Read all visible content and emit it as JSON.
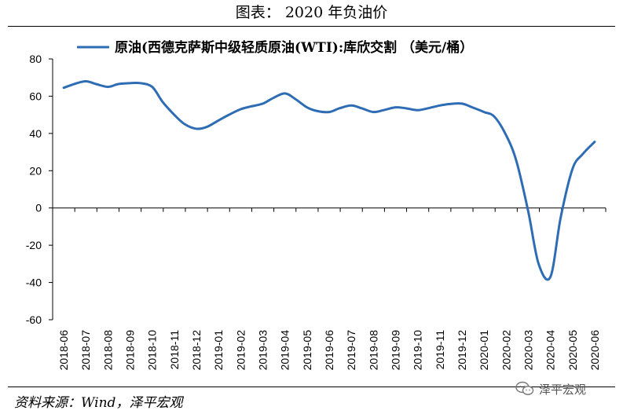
{
  "header": {
    "title": "图表： 2020 年负油价"
  },
  "footer": {
    "source": "资料来源：Wind，泽平宏观",
    "watermark": "泽平宏观",
    "watermark_icon": "wechat-icon"
  },
  "colors": {
    "series": "#2E6DB4",
    "axis": "#000000"
  },
  "chart_data": {
    "type": "line",
    "title": "",
    "xlabel": "",
    "ylabel": "",
    "ylim": [
      -60,
      80
    ],
    "yticks": [
      80,
      60,
      40,
      20,
      0,
      -20,
      -40,
      -60
    ],
    "grid": false,
    "legend_position": "top",
    "x_tick_labels": [
      "2018-06",
      "2018-07",
      "2018-08",
      "2018-09",
      "2018-10",
      "2018-11",
      "2018-12",
      "2019-01",
      "2019-02",
      "2019-03",
      "2019-04",
      "2019-05",
      "2019-06",
      "2019-07",
      "2019-08",
      "2019-09",
      "2019-10",
      "2019-11",
      "2019-12",
      "2020-01",
      "2020-02",
      "2020-03",
      "2020-04",
      "2020-05",
      "2020-06"
    ],
    "series": [
      {
        "name": "原油(西德克萨斯中级轻质原油(WTI):库欣交割 （美元/桶）",
        "x": [
          "2018-06",
          "2018-06-15",
          "2018-07",
          "2018-07-15",
          "2018-08",
          "2018-08-15",
          "2018-09",
          "2018-09-15",
          "2018-10",
          "2018-10-15",
          "2018-11",
          "2018-11-15",
          "2018-12",
          "2018-12-15",
          "2019-01",
          "2019-01-15",
          "2019-02",
          "2019-02-15",
          "2019-03",
          "2019-03-15",
          "2019-04",
          "2019-04-15",
          "2019-05",
          "2019-05-15",
          "2019-06",
          "2019-06-15",
          "2019-07",
          "2019-07-15",
          "2019-08",
          "2019-08-15",
          "2019-09",
          "2019-09-15",
          "2019-10",
          "2019-10-15",
          "2019-11",
          "2019-11-15",
          "2019-12",
          "2019-12-15",
          "2020-01",
          "2020-01-15",
          "2020-02",
          "2020-02-15",
          "2020-03",
          "2020-03-15",
          "2020-04",
          "2020-04-15",
          "2020-05",
          "2020-05-15",
          "2020-06"
        ],
        "values": [
          64.5,
          66.5,
          68,
          66.5,
          65,
          66.5,
          67,
          67,
          65,
          57,
          50,
          45,
          42.5,
          43.5,
          47,
          50,
          53,
          54.5,
          56,
          59,
          61.5,
          58.5,
          54,
          52,
          51.5,
          53.5,
          55,
          53.5,
          51.5,
          52.5,
          54,
          53.5,
          52.5,
          53.5,
          55,
          55.8,
          56,
          54,
          51.5,
          49,
          39,
          25,
          -2,
          -30,
          -37,
          -5,
          21,
          29,
          35.5
        ]
      }
    ]
  }
}
